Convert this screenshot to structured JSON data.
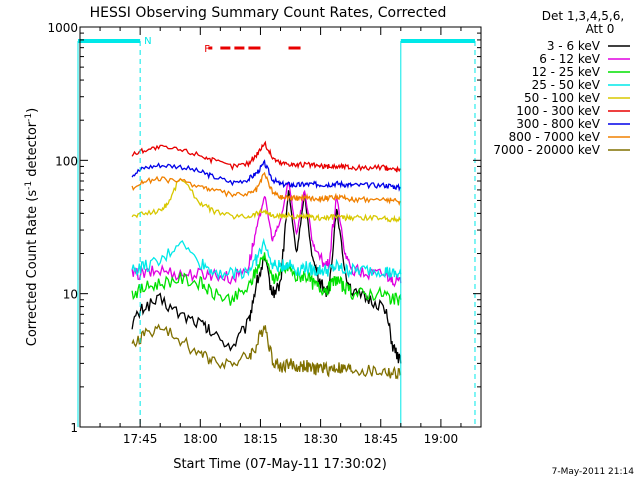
{
  "chart_data": {
    "type": "line",
    "title": "HESSI Observing Summary Count Rates, Corrected",
    "xlabel": "Start Time (07-May-11 17:30:02)",
    "ylabel": "Corrected Count Rate (s⁻¹ detector⁻¹)",
    "ylabel_parts": [
      "Corrected Count Rate (s",
      "-1",
      " detector",
      "-1",
      ")"
    ],
    "y_scale": "log",
    "ylim": [
      1,
      1000
    ],
    "xlim_minutes_after_1730": [
      0,
      100
    ],
    "x_ticks": [
      {
        "minute": 15,
        "label": "17:45"
      },
      {
        "minute": 30,
        "label": "18:00"
      },
      {
        "minute": 45,
        "label": "18:15"
      },
      {
        "minute": 60,
        "label": "18:30"
      },
      {
        "minute": 75,
        "label": "18:45"
      },
      {
        "minute": 90,
        "label": "19:00"
      }
    ],
    "y_ticks": [
      {
        "value": 1,
        "label": "1"
      },
      {
        "value": 10,
        "label": "10"
      },
      {
        "value": 100,
        "label": "100"
      },
      {
        "value": 1000,
        "label": "1000"
      }
    ],
    "legend": {
      "position": "top-right",
      "header": [
        "Det 1,3,4,5,6,",
        "Att 0"
      ],
      "entries": [
        {
          "label": "3 - 6 keV",
          "color": "#000000"
        },
        {
          "label": "6 - 12 keV",
          "color": "#e000e0"
        },
        {
          "label": "12 - 25 keV",
          "color": "#00e000"
        },
        {
          "label": "25 - 50 keV",
          "color": "#00e8e8"
        },
        {
          "label": "50 - 100 keV",
          "color": "#d8c800"
        },
        {
          "label": "100 - 300 keV",
          "color": "#e80000"
        },
        {
          "label": "300 - 800 keV",
          "color": "#0000e8"
        },
        {
          "label": "800 - 7000 keV",
          "color": "#f08000"
        },
        {
          "label": "7000 - 20000 keV",
          "color": "#807000"
        }
      ]
    },
    "series": [
      {
        "name": "3 - 6 keV",
        "color": "#000000",
        "x": [
          13,
          16,
          20,
          25,
          30,
          33,
          38,
          42,
          44,
          46,
          48,
          50,
          52,
          54,
          56,
          58,
          60,
          62,
          64,
          66,
          68,
          72,
          76,
          78,
          80
        ],
        "y": [
          6,
          8,
          9,
          7,
          6,
          5,
          4,
          6,
          12,
          18,
          10,
          12,
          60,
          20,
          55,
          18,
          12,
          10,
          45,
          15,
          10,
          9,
          8,
          4,
          3
        ]
      },
      {
        "name": "6 - 12 keV",
        "color": "#e000e0",
        "x": [
          13,
          16,
          20,
          25,
          30,
          33,
          38,
          42,
          44,
          46,
          48,
          50,
          52,
          54,
          56,
          58,
          60,
          62,
          64,
          66,
          68,
          72,
          76,
          78,
          80
        ],
        "y": [
          14,
          14,
          15,
          14,
          14,
          14,
          13,
          16,
          30,
          55,
          25,
          35,
          70,
          28,
          60,
          24,
          18,
          16,
          55,
          20,
          15,
          14,
          14,
          13,
          12
        ]
      },
      {
        "name": "12 - 25 keV",
        "color": "#00e000",
        "x": [
          13,
          16,
          20,
          25,
          30,
          33,
          38,
          42,
          44,
          46,
          48,
          50,
          52,
          54,
          56,
          58,
          60,
          62,
          64,
          66,
          68,
          72,
          76,
          78,
          80
        ],
        "y": [
          10,
          11,
          12,
          13,
          12,
          10,
          9,
          11,
          15,
          20,
          13,
          14,
          16,
          13,
          14,
          12,
          11,
          11,
          13,
          11,
          10,
          10,
          10,
          9,
          9
        ]
      },
      {
        "name": "25 - 50 keV",
        "color": "#00e8e8",
        "x": [
          13,
          16,
          20,
          25,
          30,
          33,
          38,
          42,
          44,
          46,
          48,
          50,
          52,
          54,
          56,
          58,
          60,
          62,
          64,
          66,
          68,
          72,
          76,
          78,
          80
        ],
        "y": [
          15,
          16,
          17,
          25,
          17,
          15,
          14,
          15,
          18,
          24,
          16,
          16,
          17,
          15,
          16,
          15,
          15,
          15,
          16,
          15,
          15,
          15,
          15,
          14,
          14
        ]
      },
      {
        "name": "50 - 100 keV",
        "color": "#d8c800",
        "x": [
          13,
          16,
          20,
          22,
          25,
          30,
          33,
          38,
          42,
          44,
          46,
          48,
          50,
          52,
          54,
          56,
          58,
          60,
          62,
          64,
          66,
          68,
          72,
          76,
          78,
          80
        ],
        "y": [
          38,
          40,
          42,
          48,
          75,
          48,
          42,
          38,
          38,
          40,
          42,
          38,
          38,
          39,
          37,
          38,
          37,
          37,
          37,
          38,
          37,
          37,
          37,
          37,
          36,
          36
        ]
      },
      {
        "name": "100 - 300 keV",
        "color": "#e80000",
        "x": [
          13,
          16,
          20,
          25,
          30,
          33,
          38,
          42,
          44,
          46,
          48,
          50,
          52,
          54,
          56,
          58,
          60,
          62,
          64,
          66,
          68,
          72,
          76,
          78,
          80
        ],
        "y": [
          110,
          120,
          125,
          120,
          110,
          100,
          90,
          95,
          110,
          135,
          105,
          95,
          95,
          92,
          93,
          92,
          90,
          90,
          90,
          90,
          88,
          88,
          88,
          86,
          85
        ]
      },
      {
        "name": "300 - 800 keV",
        "color": "#0000e8",
        "x": [
          13,
          16,
          20,
          25,
          30,
          33,
          38,
          42,
          44,
          46,
          48,
          50,
          52,
          54,
          56,
          58,
          60,
          62,
          64,
          66,
          68,
          72,
          76,
          78,
          80
        ],
        "y": [
          78,
          88,
          92,
          90,
          82,
          76,
          68,
          72,
          80,
          95,
          72,
          66,
          66,
          65,
          66,
          66,
          66,
          66,
          67,
          66,
          65,
          65,
          65,
          64,
          62
        ]
      },
      {
        "name": "800 - 7000 keV",
        "color": "#f08000",
        "x": [
          13,
          16,
          20,
          25,
          30,
          33,
          38,
          42,
          44,
          46,
          48,
          50,
          52,
          54,
          56,
          58,
          60,
          62,
          64,
          66,
          68,
          72,
          76,
          78,
          80
        ],
        "y": [
          62,
          70,
          72,
          70,
          64,
          60,
          55,
          56,
          60,
          80,
          58,
          53,
          53,
          52,
          53,
          52,
          52,
          52,
          53,
          52,
          51,
          51,
          51,
          50,
          49
        ]
      },
      {
        "name": "7000 - 20000 keV",
        "color": "#807000",
        "x": [
          13,
          16,
          20,
          25,
          30,
          33,
          38,
          42,
          44,
          46,
          48,
          50,
          52,
          54,
          56,
          58,
          60,
          62,
          64,
          66,
          68,
          72,
          76,
          78,
          80
        ],
        "y": [
          4,
          5,
          5.5,
          4.5,
          3.5,
          3.2,
          3,
          3.4,
          4,
          6,
          3.2,
          2.8,
          3,
          2.8,
          2.9,
          2.7,
          2.8,
          2.7,
          2.8,
          2.7,
          2.7,
          2.6,
          2.6,
          2.5,
          2.5
        ]
      }
    ],
    "annotations": {
      "night_bars": [
        {
          "x_start": -0.5,
          "x_end": 15
        },
        {
          "x_start": 80,
          "x_end": 98.5
        }
      ],
      "saa_lines": [
        15,
        98.5
      ],
      "flare_lines": [
        -0.5,
        80
      ],
      "saa_label": "N",
      "saa_label_x": 16,
      "flare_label": "F",
      "flare_label_x": 31,
      "flare_segments": [
        [
          32,
          33
        ],
        [
          35,
          37.5
        ],
        [
          38.5,
          41
        ],
        [
          42,
          45
        ],
        [
          52,
          55
        ]
      ]
    },
    "footer_timestamp": "7-May-2011 21:14"
  }
}
